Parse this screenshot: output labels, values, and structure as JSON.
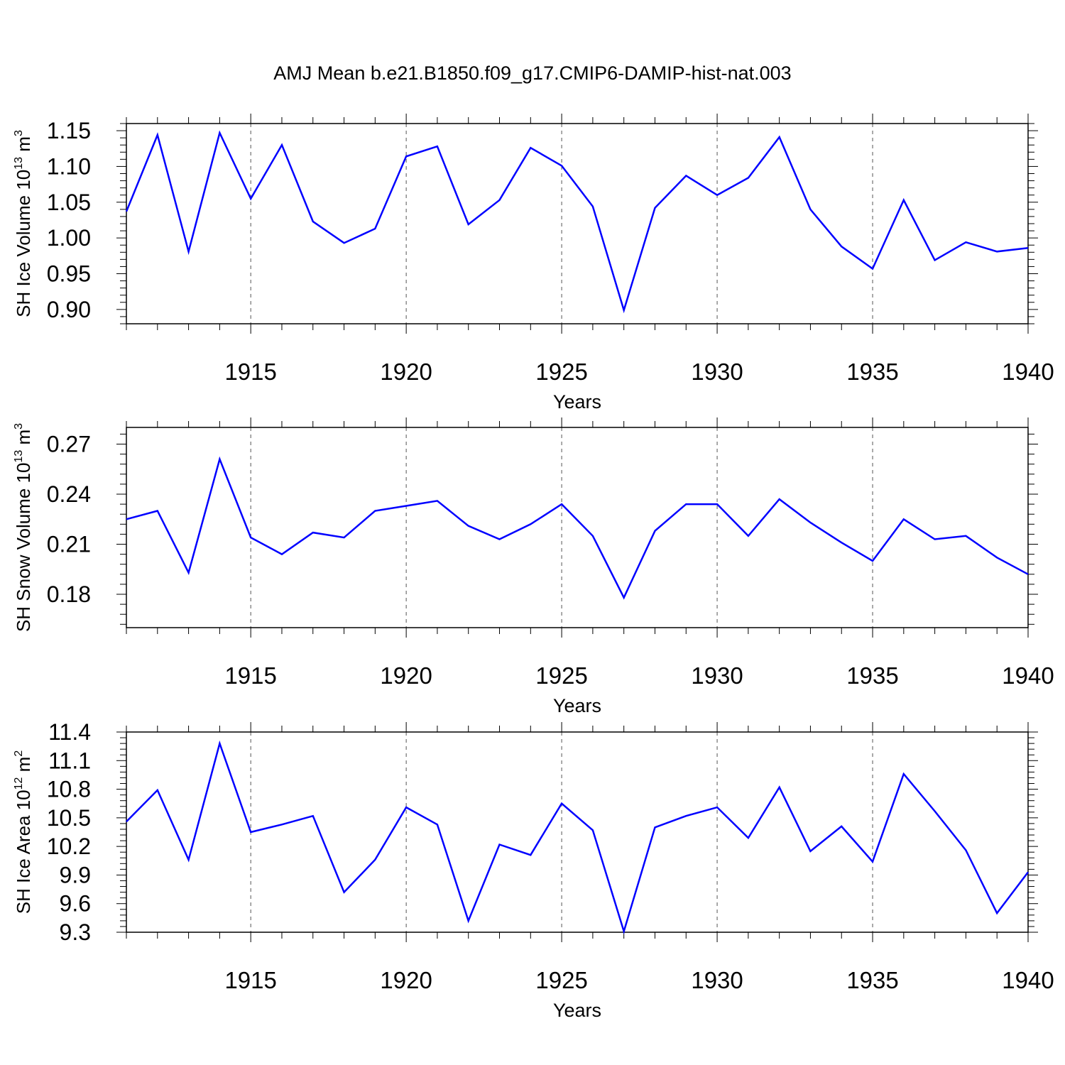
{
  "title": "AMJ Mean b.e21.B1850.f09_g17.CMIP6-DAMIP-hist-nat.003",
  "line_color": "#0000ff",
  "chart_data": [
    {
      "type": "line",
      "xlabel": "Years",
      "ylabel": "SH Ice Volume 10",
      "ylabel_exp": "13",
      "ylabel_unit": "m",
      "ylabel_unit_exp": "3",
      "xlim": [
        1911,
        1940
      ],
      "ylim": [
        0.88,
        1.16
      ],
      "y_ticks": [
        "0.90",
        "0.95",
        "1.00",
        "1.05",
        "1.10",
        "1.15"
      ],
      "x_ticks": [
        "1915",
        "1920",
        "1925",
        "1930",
        "1935",
        "1940"
      ],
      "grid": "vertical dashed at labeled years",
      "x": [
        1911,
        1912,
        1913,
        1914,
        1915,
        1916,
        1917,
        1918,
        1919,
        1920,
        1921,
        1922,
        1923,
        1924,
        1925,
        1926,
        1927,
        1928,
        1929,
        1930,
        1931,
        1932,
        1933,
        1934,
        1935,
        1936,
        1937,
        1938,
        1939,
        1940
      ],
      "values": [
        1.037,
        1.144,
        0.981,
        1.147,
        1.055,
        1.13,
        1.023,
        0.993,
        1.013,
        1.114,
        1.128,
        1.019,
        1.053,
        1.126,
        1.101,
        1.044,
        0.899,
        1.042,
        1.087,
        1.06,
        1.084,
        1.141,
        1.04,
        0.988,
        0.957,
        1.053,
        0.969,
        0.994,
        0.981,
        0.986
      ]
    },
    {
      "type": "line",
      "xlabel": "Years",
      "ylabel": "SH Snow Volume 10",
      "ylabel_exp": "13",
      "ylabel_unit": "m",
      "ylabel_unit_exp": "3",
      "xlim": [
        1911,
        1940
      ],
      "ylim": [
        0.16,
        0.28
      ],
      "y_ticks": [
        "0.18",
        "0.21",
        "0.24",
        "0.27"
      ],
      "x_ticks": [
        "1915",
        "1920",
        "1925",
        "1930",
        "1935",
        "1940"
      ],
      "grid": "vertical dashed at labeled years",
      "x": [
        1911,
        1912,
        1913,
        1914,
        1915,
        1916,
        1917,
        1918,
        1919,
        1920,
        1921,
        1922,
        1923,
        1924,
        1925,
        1926,
        1927,
        1928,
        1929,
        1930,
        1931,
        1932,
        1933,
        1934,
        1935,
        1936,
        1937,
        1938,
        1939,
        1940
      ],
      "values": [
        0.225,
        0.23,
        0.193,
        0.261,
        0.214,
        0.204,
        0.217,
        0.214,
        0.23,
        0.233,
        0.236,
        0.221,
        0.213,
        0.222,
        0.234,
        0.215,
        0.178,
        0.218,
        0.234,
        0.234,
        0.215,
        0.237,
        0.223,
        0.211,
        0.2,
        0.225,
        0.213,
        0.215,
        0.202,
        0.192
      ]
    },
    {
      "type": "line",
      "xlabel": "Years",
      "ylabel": "SH Ice Area 10",
      "ylabel_exp": "12",
      "ylabel_unit": "m",
      "ylabel_unit_exp": "2",
      "xlim": [
        1911,
        1940
      ],
      "ylim": [
        9.3,
        11.4
      ],
      "y_ticks": [
        "9.3",
        "9.6",
        "9.9",
        "10.2",
        "10.5",
        "10.8",
        "11.1",
        "11.4"
      ],
      "x_ticks": [
        "1915",
        "1920",
        "1925",
        "1930",
        "1935",
        "1940"
      ],
      "grid": "vertical dashed at labeled years",
      "x": [
        1911,
        1912,
        1913,
        1914,
        1915,
        1916,
        1917,
        1918,
        1919,
        1920,
        1921,
        1922,
        1923,
        1924,
        1925,
        1926,
        1927,
        1928,
        1929,
        1930,
        1931,
        1932,
        1933,
        1934,
        1935,
        1936,
        1937,
        1938,
        1939,
        1940
      ],
      "values": [
        10.46,
        10.79,
        10.06,
        11.28,
        10.35,
        10.43,
        10.52,
        9.72,
        10.06,
        10.61,
        10.43,
        9.42,
        10.22,
        10.11,
        10.65,
        10.37,
        9.31,
        10.4,
        10.52,
        10.61,
        10.29,
        10.82,
        10.15,
        10.41,
        10.04,
        10.96,
        10.57,
        10.16,
        9.5,
        9.93
      ]
    }
  ]
}
